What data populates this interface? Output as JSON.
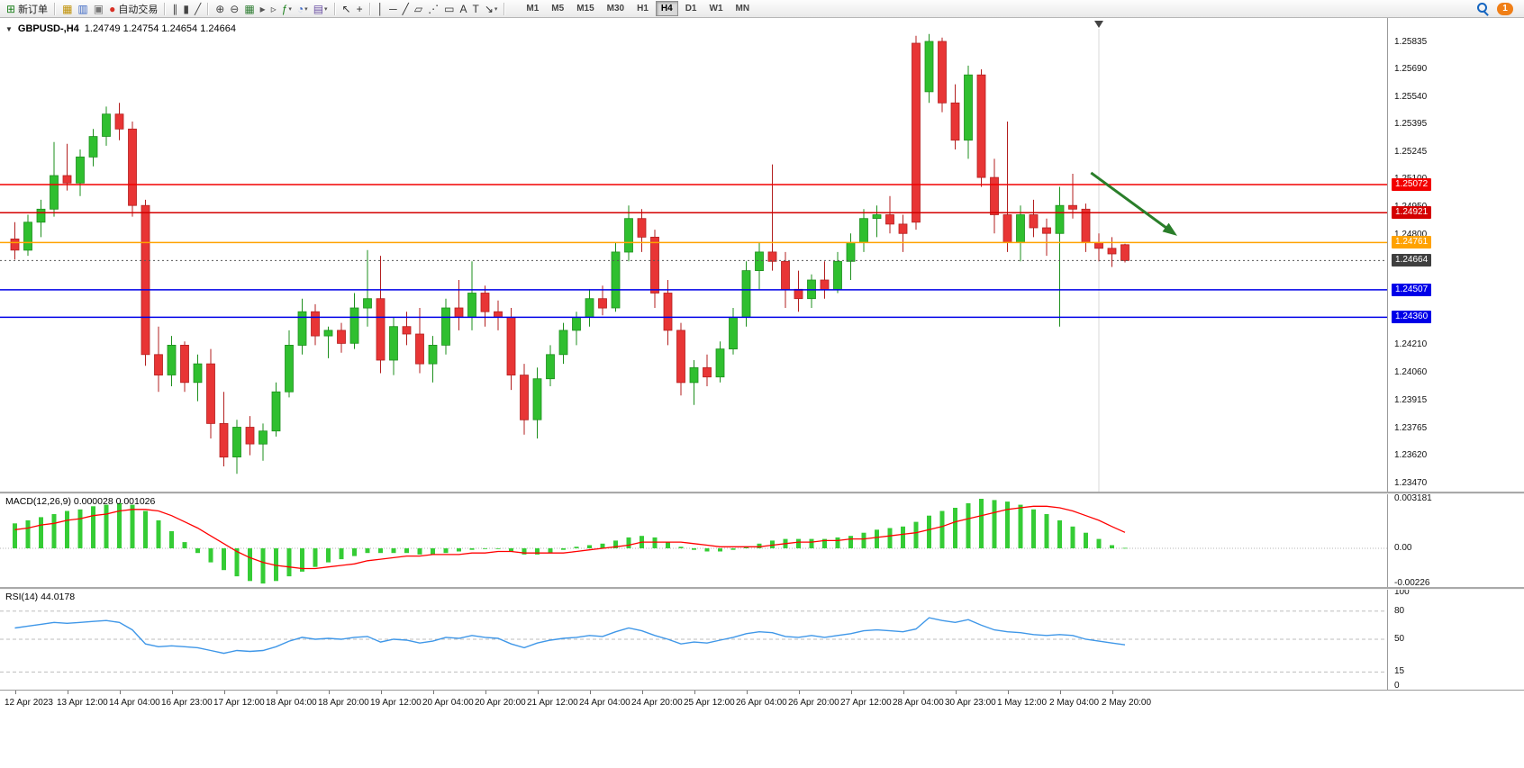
{
  "toolbar": {
    "dropdown_glyph": "▾",
    "notification_count": "1",
    "timeframes": [
      "M1",
      "M5",
      "M15",
      "M30",
      "H1",
      "H4",
      "D1",
      "W1",
      "MN"
    ],
    "active_timeframe": "H4",
    "items": [
      {
        "kind": "ic",
        "name": "new-order",
        "glyph": "⊞",
        "color": "#1a7f1a",
        "label": "新订单"
      },
      {
        "kind": "sep"
      },
      {
        "kind": "ic",
        "name": "charts",
        "glyph": "▦",
        "color": "#bf8f00"
      },
      {
        "kind": "ic",
        "name": "profiles",
        "glyph": "▥",
        "color": "#3a66c4"
      },
      {
        "kind": "ic",
        "name": "data-window",
        "glyph": "▣",
        "color": "#777777"
      },
      {
        "kind": "ic",
        "name": "auto-trading",
        "glyph": "●",
        "color": "#d83025",
        "label": "自动交易"
      },
      {
        "kind": "sep"
      },
      {
        "kind": "ic",
        "name": "bar-chart",
        "glyph": "∥",
        "color": "#444444"
      },
      {
        "kind": "ic",
        "name": "candlestick-chart",
        "glyph": "▮",
        "color": "#444444"
      },
      {
        "kind": "ic",
        "name": "line-chart",
        "glyph": "╱",
        "color": "#444444"
      },
      {
        "kind": "sep"
      },
      {
        "kind": "ic",
        "name": "zoom-in",
        "glyph": "⊕",
        "color": "#444444"
      },
      {
        "kind": "ic",
        "name": "zoom-out",
        "glyph": "⊖",
        "color": "#444444"
      },
      {
        "kind": "ic",
        "name": "tile-windows",
        "glyph": "▦",
        "color": "#2e7d32"
      },
      {
        "kind": "ic",
        "name": "auto-scroll",
        "glyph": "▸",
        "color": "#555555"
      },
      {
        "kind": "ic",
        "name": "chart-shift",
        "glyph": "▹",
        "color": "#555555"
      },
      {
        "kind": "ic",
        "name": "indicators",
        "glyph": "ƒ",
        "color": "#1a7f1a",
        "dropdown": true
      },
      {
        "kind": "ic",
        "name": "periods",
        "glyph": "◔",
        "color": "#3a66c4",
        "dropdown": true
      },
      {
        "kind": "ic",
        "name": "templates",
        "glyph": "▤",
        "color": "#6a4fa3",
        "dropdown": true
      },
      {
        "kind": "sep"
      },
      {
        "kind": "ic",
        "name": "cursor",
        "glyph": "↖",
        "color": "#333333"
      },
      {
        "kind": "ic",
        "name": "crosshair",
        "glyph": "+",
        "color": "#333333"
      },
      {
        "kind": "sep"
      },
      {
        "kind": "ic",
        "name": "vertical-line",
        "glyph": "│",
        "color": "#333333"
      },
      {
        "kind": "ic",
        "name": "horizontal-line",
        "glyph": "─",
        "color": "#333333"
      },
      {
        "kind": "ic",
        "name": "trendline",
        "glyph": "╱",
        "color": "#333333"
      },
      {
        "kind": "ic",
        "name": "equidistant-channel",
        "glyph": "▱",
        "color": "#333333"
      },
      {
        "kind": "ic",
        "name": "fibonacci",
        "glyph": "⋰",
        "color": "#333333"
      },
      {
        "kind": "ic",
        "name": "shapes",
        "glyph": "▭",
        "color": "#333333"
      },
      {
        "kind": "ic",
        "name": "text",
        "glyph": "A",
        "color": "#333333"
      },
      {
        "kind": "ic",
        "name": "text-label",
        "glyph": "T",
        "color": "#333333"
      },
      {
        "kind": "ic",
        "name": "arrows",
        "glyph": "↘",
        "color": "#333333",
        "dropdown": true
      },
      {
        "kind": "sep"
      }
    ]
  },
  "chart": {
    "collapse_glyph": "▼",
    "symbol_label": "GBPUSD-,H4",
    "ohlc_label": "1.24749 1.24754 1.24654 1.24664"
  },
  "theme": {
    "candle_up": "#2fbf2f",
    "candle_up_border": "#1d8f1d",
    "candle_down": "#e83535",
    "candle_down_border": "#b31f1f",
    "macd_histogram": "#35cc35",
    "macd_signal": "#ff0000",
    "rsi_line": "#3f97e8",
    "arrow": "#2a7e2a",
    "resistance_red": "#f20000",
    "support_blue": "#0000e8",
    "pivot_orange": "#ffa200"
  },
  "chart_data": {
    "type": "candlestick",
    "symbol": "GBPUSD-",
    "timeframe": "H4",
    "current_ohlc": {
      "open": 1.24749,
      "high": 1.24754,
      "low": 1.24654,
      "close": 1.24664
    },
    "price_axis_ticks": [
      1.25835,
      1.2569,
      1.2554,
      1.25395,
      1.25245,
      1.251,
      1.2495,
      1.248,
      1.2465,
      1.245,
      1.2436,
      1.2421,
      1.2406,
      1.23915,
      1.23765,
      1.2362,
      1.2347
    ],
    "hlines": [
      {
        "price": 1.25072,
        "color": "#f20000"
      },
      {
        "price": 1.24921,
        "color": "#d40000"
      },
      {
        "price": 1.24761,
        "color": "#ffa200"
      },
      {
        "price": 1.24507,
        "color": "#0000e8"
      },
      {
        "price": 1.2436,
        "color": "#0000e8"
      }
    ],
    "current_price_line": {
      "price": 1.24664,
      "color": "#555555",
      "badge_color": "#3f3f3f"
    },
    "arrow_annotation": {
      "from": {
        "bar": 82.4,
        "price": 1.25135
      },
      "to": {
        "bar": 89.0,
        "price": 1.24797
      }
    },
    "time_marker": {
      "bar": 83
    },
    "label_every": 4,
    "time_labels": [
      "12 Apr 2023",
      "13 Apr 12:00",
      "14 Apr 04:00",
      "16 Apr 23:00",
      "17 Apr 12:00",
      "18 Apr 04:00",
      "18 Apr 20:00",
      "19 Apr 12:00",
      "20 Apr 04:00",
      "20 Apr 20:00",
      "21 Apr 12:00",
      "24 Apr 04:00",
      "24 Apr 20:00",
      "25 Apr 12:00",
      "26 Apr 04:00",
      "26 Apr 20:00",
      "27 Apr 12:00",
      "28 Apr 04:00",
      "30 Apr 23:00",
      "1 May 12:00",
      "2 May 04:00",
      "2 May 20:00"
    ],
    "candles": [
      [
        1.2478,
        1.2487,
        1.2467,
        1.2472
      ],
      [
        1.2472,
        1.2491,
        1.2469,
        1.2487
      ],
      [
        1.2487,
        1.2499,
        1.2479,
        1.2494
      ],
      [
        1.2494,
        1.253,
        1.249,
        1.2512
      ],
      [
        1.2512,
        1.2529,
        1.2504,
        1.2508
      ],
      [
        1.2508,
        1.2526,
        1.2501,
        1.2522
      ],
      [
        1.2522,
        1.2537,
        1.2517,
        1.2533
      ],
      [
        1.2533,
        1.2549,
        1.2528,
        1.2545
      ],
      [
        1.2545,
        1.2551,
        1.2531,
        1.2537
      ],
      [
        1.2537,
        1.2541,
        1.249,
        1.2496
      ],
      [
        1.2496,
        1.2499,
        1.241,
        1.2416
      ],
      [
        1.2416,
        1.2431,
        1.2396,
        1.2405
      ],
      [
        1.2405,
        1.2426,
        1.2399,
        1.2421
      ],
      [
        1.2421,
        1.2423,
        1.2396,
        1.2401
      ],
      [
        1.2401,
        1.2416,
        1.2391,
        1.2411
      ],
      [
        1.2411,
        1.2419,
        1.2371,
        1.2379
      ],
      [
        1.2379,
        1.2396,
        1.2356,
        1.2361
      ],
      [
        1.2361,
        1.2381,
        1.2352,
        1.2377
      ],
      [
        1.2377,
        1.2383,
        1.2362,
        1.2368
      ],
      [
        1.2368,
        1.2379,
        1.2359,
        1.2375
      ],
      [
        1.2375,
        1.2401,
        1.2372,
        1.2396
      ],
      [
        1.2396,
        1.2429,
        1.2393,
        1.2421
      ],
      [
        1.2421,
        1.2446,
        1.2416,
        1.2439
      ],
      [
        1.2439,
        1.2443,
        1.2421,
        1.2426
      ],
      [
        1.2426,
        1.2431,
        1.2414,
        1.2429
      ],
      [
        1.2429,
        1.2433,
        1.2417,
        1.2422
      ],
      [
        1.2422,
        1.2449,
        1.2419,
        1.2441
      ],
      [
        1.2441,
        1.2472,
        1.2431,
        1.2446
      ],
      [
        1.2446,
        1.2469,
        1.2406,
        1.2413
      ],
      [
        1.2413,
        1.2436,
        1.2405,
        1.2431
      ],
      [
        1.2431,
        1.2439,
        1.2421,
        1.2427
      ],
      [
        1.2427,
        1.2441,
        1.2406,
        1.2411
      ],
      [
        1.2411,
        1.2426,
        1.2401,
        1.2421
      ],
      [
        1.2421,
        1.2446,
        1.2416,
        1.2441
      ],
      [
        1.2441,
        1.2456,
        1.2429,
        1.2436
      ],
      [
        1.2436,
        1.2466,
        1.2429,
        1.2449
      ],
      [
        1.2449,
        1.2453,
        1.2431,
        1.2439
      ],
      [
        1.2439,
        1.2445,
        1.2429,
        1.2436
      ],
      [
        1.2436,
        1.2441,
        1.2397,
        1.2405
      ],
      [
        1.2405,
        1.2411,
        1.2373,
        1.2381
      ],
      [
        1.2381,
        1.2409,
        1.2371,
        1.2403
      ],
      [
        1.2403,
        1.2421,
        1.2399,
        1.2416
      ],
      [
        1.2416,
        1.2433,
        1.2411,
        1.2429
      ],
      [
        1.2429,
        1.2439,
        1.2421,
        1.2436
      ],
      [
        1.2436,
        1.2451,
        1.2431,
        1.2446
      ],
      [
        1.2446,
        1.2453,
        1.2437,
        1.2441
      ],
      [
        1.2441,
        1.2476,
        1.2439,
        1.2471
      ],
      [
        1.2471,
        1.2496,
        1.2466,
        1.2489
      ],
      [
        1.2489,
        1.2494,
        1.2471,
        1.2479
      ],
      [
        1.2479,
        1.2483,
        1.2441,
        1.2449
      ],
      [
        1.2449,
        1.2456,
        1.2421,
        1.2429
      ],
      [
        1.2429,
        1.2433,
        1.2394,
        1.2401
      ],
      [
        1.2401,
        1.2413,
        1.2389,
        1.2409
      ],
      [
        1.2409,
        1.2416,
        1.2399,
        1.2404
      ],
      [
        1.2404,
        1.2423,
        1.2401,
        1.2419
      ],
      [
        1.2419,
        1.2441,
        1.2416,
        1.2436
      ],
      [
        1.2436,
        1.2466,
        1.2431,
        1.2461
      ],
      [
        1.2461,
        1.2476,
        1.2451,
        1.2471
      ],
      [
        1.2471,
        1.2518,
        1.2461,
        1.2466
      ],
      [
        1.2466,
        1.2471,
        1.2441,
        1.2451
      ],
      [
        1.2451,
        1.2461,
        1.2439,
        1.2446
      ],
      [
        1.2446,
        1.2459,
        1.2441,
        1.2456
      ],
      [
        1.2456,
        1.2466,
        1.2446,
        1.2451
      ],
      [
        1.2451,
        1.2471,
        1.2449,
        1.2466
      ],
      [
        1.2466,
        1.2481,
        1.2456,
        1.2476
      ],
      [
        1.2476,
        1.2494,
        1.2471,
        1.2489
      ],
      [
        1.2489,
        1.2496,
        1.2479,
        1.2491
      ],
      [
        1.2491,
        1.2501,
        1.2481,
        1.2486
      ],
      [
        1.2486,
        1.2491,
        1.2471,
        1.2481
      ],
      [
        1.2583,
        1.2587,
        1.2483,
        1.2487
      ],
      [
        1.2557,
        1.2588,
        1.2551,
        1.2584
      ],
      [
        1.2584,
        1.2586,
        1.2546,
        1.2551
      ],
      [
        1.2551,
        1.2561,
        1.2526,
        1.2531
      ],
      [
        1.2531,
        1.2571,
        1.2521,
        1.2566
      ],
      [
        1.2566,
        1.2569,
        1.2506,
        1.2511
      ],
      [
        1.2511,
        1.2521,
        1.2481,
        1.2491
      ],
      [
        1.2491,
        1.2541,
        1.2471,
        1.2476
      ],
      [
        1.2476,
        1.2496,
        1.2466,
        1.2491
      ],
      [
        1.2491,
        1.2499,
        1.2479,
        1.2484
      ],
      [
        1.2484,
        1.2489,
        1.2469,
        1.2481
      ],
      [
        1.2481,
        1.2506,
        1.2431,
        1.2496
      ],
      [
        1.2496,
        1.2513,
        1.2489,
        1.2494
      ],
      [
        1.2494,
        1.2497,
        1.2471,
        1.2476
      ],
      [
        1.2476,
        1.2481,
        1.2466,
        1.2473
      ],
      [
        1.2473,
        1.2479,
        1.2463,
        1.247
      ],
      [
        1.24749,
        1.24754,
        1.24654,
        1.24664
      ]
    ],
    "macd": {
      "label": "MACD(12,26,9) 0.000028 0.001026",
      "axis": [
        {
          "label": "0.003181",
          "value": 0.003181
        },
        {
          "label": "0.00",
          "value": 0
        },
        {
          "label": "-0.00226",
          "value": -0.00226
        }
      ],
      "histogram": [
        0.0016,
        0.0018,
        0.002,
        0.0022,
        0.0024,
        0.0025,
        0.0027,
        0.0028,
        0.0029,
        0.0028,
        0.0024,
        0.0018,
        0.0011,
        0.0004,
        -0.0003,
        -0.0009,
        -0.0014,
        -0.0018,
        -0.0021,
        -0.00226,
        -0.0021,
        -0.0018,
        -0.0015,
        -0.0012,
        -0.0009,
        -0.0007,
        -0.0005,
        -0.0003,
        -0.0003,
        -0.0003,
        -0.0003,
        -0.0004,
        -0.0004,
        -0.0003,
        -0.0002,
        -0.0001,
        0.0,
        0.0,
        -0.0002,
        -0.0004,
        -0.0004,
        -0.0003,
        -0.0001,
        0.0001,
        0.0002,
        0.0003,
        0.0005,
        0.0007,
        0.0008,
        0.0007,
        0.0004,
        0.0001,
        -0.0001,
        -0.0002,
        -0.0002,
        -0.0001,
        0.0001,
        0.0003,
        0.0005,
        0.0006,
        0.0006,
        0.0006,
        0.0006,
        0.0007,
        0.0008,
        0.001,
        0.0012,
        0.0013,
        0.0014,
        0.0017,
        0.0021,
        0.0024,
        0.0026,
        0.0029,
        0.003181,
        0.0031,
        0.003,
        0.0028,
        0.0025,
        0.0022,
        0.0018,
        0.0014,
        0.001,
        0.0006,
        0.0002,
        2.8e-05
      ],
      "signal": [
        0.0012,
        0.0013,
        0.0015,
        0.0016,
        0.0018,
        0.0019,
        0.0021,
        0.0022,
        0.0024,
        0.0025,
        0.0025,
        0.0024,
        0.0021,
        0.0017,
        0.0013,
        0.0008,
        0.0003,
        -0.0002,
        -0.0006,
        -0.0009,
        -0.0011,
        -0.0012,
        -0.0013,
        -0.0013,
        -0.0012,
        -0.0011,
        -0.001,
        -0.0008,
        -0.0007,
        -0.0006,
        -0.0005,
        -0.0005,
        -0.0004,
        -0.0004,
        -0.0004,
        -0.0003,
        -0.0003,
        -0.0002,
        -0.0002,
        -0.0003,
        -0.0003,
        -0.0003,
        -0.0003,
        -0.0002,
        -0.0001,
        0.0,
        0.0001,
        0.0002,
        0.0004,
        0.0004,
        0.0004,
        0.0004,
        0.0003,
        0.0002,
        0.0001,
        0.0001,
        0.0001,
        0.0001,
        0.0002,
        0.0003,
        0.0004,
        0.0004,
        0.0005,
        0.0005,
        0.0006,
        0.0006,
        0.0007,
        0.0008,
        0.0009,
        0.001,
        0.0012,
        0.0014,
        0.0017,
        0.0019,
        0.0021,
        0.0023,
        0.0025,
        0.0026,
        0.0027,
        0.0027,
        0.0026,
        0.0024,
        0.0021,
        0.0018,
        0.0014,
        0.001026
      ]
    },
    "rsi": {
      "label": "RSI(14) 44.0178",
      "levels": [
        80,
        50,
        15
      ],
      "axis": [
        {
          "label": "100",
          "value": 100
        },
        {
          "label": "80",
          "value": 80
        },
        {
          "label": "50",
          "value": 50
        },
        {
          "label": "15",
          "value": 15
        },
        {
          "label": "0",
          "value": 0
        }
      ],
      "values": [
        62,
        64,
        66,
        68,
        67,
        68,
        69,
        70,
        68,
        60,
        45,
        42,
        43,
        42,
        41,
        38,
        35,
        38,
        37,
        38,
        42,
        48,
        52,
        50,
        51,
        50,
        52,
        53,
        47,
        50,
        49,
        46,
        48,
        52,
        51,
        54,
        52,
        51,
        45,
        41,
        46,
        49,
        51,
        52,
        54,
        53,
        58,
        62,
        59,
        54,
        50,
        45,
        47,
        46,
        49,
        52,
        56,
        58,
        57,
        53,
        52,
        54,
        52,
        54,
        56,
        59,
        60,
        59,
        58,
        61,
        73,
        70,
        68,
        71,
        65,
        60,
        58,
        57,
        55,
        54,
        55,
        54,
        50,
        48,
        46,
        44.0178
      ]
    }
  }
}
